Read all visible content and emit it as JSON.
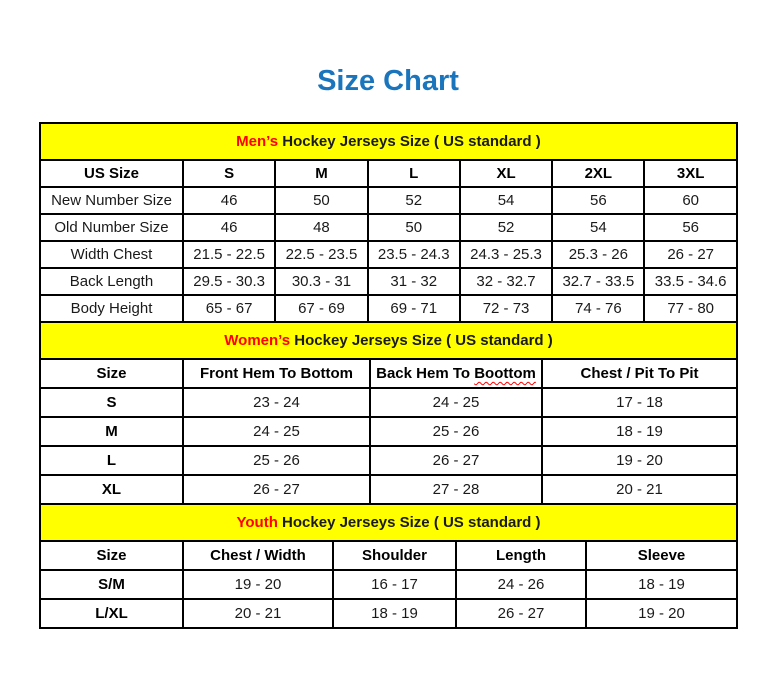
{
  "page": {
    "title": "Size Chart"
  },
  "colors": {
    "title_blue": "#1b75bc",
    "banner_yellow": "#ffff00",
    "accent_red": "#ff0000",
    "border_black": "#000000"
  },
  "tables": [
    {
      "id": "mens",
      "banner": {
        "highlight": "Men’s",
        "rest": " Hockey Jerseys Size ( US standard )"
      },
      "columns": [
        "US Size",
        "S",
        "M",
        "L",
        "XL",
        "2XL",
        "3XL"
      ],
      "rows": [
        {
          "label": "New Number Size",
          "values": [
            "46",
            "50",
            "52",
            "54",
            "56",
            "60"
          ]
        },
        {
          "label": "Old Number Size",
          "values": [
            "46",
            "48",
            "50",
            "52",
            "54",
            "56"
          ]
        },
        {
          "label": "Width Chest",
          "values": [
            "21.5 - 22.5",
            "22.5 - 23.5",
            "23.5 - 24.3",
            "24.3 - 25.3",
            "25.3 - 26",
            "26 - 27"
          ]
        },
        {
          "label": "Back Length",
          "values": [
            "29.5 - 30.3",
            "30.3 - 31",
            "31 - 32",
            "32 - 32.7",
            "32.7 - 33.5",
            "33.5 - 34.6"
          ]
        },
        {
          "label": "Body Height",
          "values": [
            "65 - 67",
            "67 - 69",
            "69 - 71",
            "72 - 73",
            "74 - 76",
            "77 - 80"
          ]
        }
      ]
    },
    {
      "id": "womens",
      "banner": {
        "highlight": "Women’s",
        "rest": " Hockey Jerseys Size ( US standard )"
      },
      "columns": [
        "Size",
        "Front Hem To Bottom",
        "Back Hem To Boottom",
        "Chest / Pit To Pit"
      ],
      "spellcheck": {
        "column_index": 2,
        "prefix": "Back Hem To ",
        "word": "Boottom"
      },
      "rows": [
        {
          "label": "S",
          "values": [
            "23 - 24",
            "24 - 25",
            "17 - 18"
          ]
        },
        {
          "label": "M",
          "values": [
            "24 - 25",
            "25 - 26",
            "18 - 19"
          ]
        },
        {
          "label": "L",
          "values": [
            "25 - 26",
            "26 - 27",
            "19 - 20"
          ]
        },
        {
          "label": "XL",
          "values": [
            "26 - 27",
            "27 - 28",
            "20 - 21"
          ]
        }
      ]
    },
    {
      "id": "youth",
      "banner": {
        "highlight": "Youth",
        "rest": " Hockey Jerseys Size ( US standard )"
      },
      "columns": [
        "Size",
        "Chest / Width",
        "Shoulder",
        "Length",
        "Sleeve"
      ],
      "rows": [
        {
          "label": "S/M",
          "values": [
            "19 - 20",
            "16 - 17",
            "24 - 26",
            "18 - 19"
          ]
        },
        {
          "label": "L/XL",
          "values": [
            "20 - 21",
            "18 - 19",
            "26 - 27",
            "19 - 20"
          ]
        }
      ]
    }
  ]
}
